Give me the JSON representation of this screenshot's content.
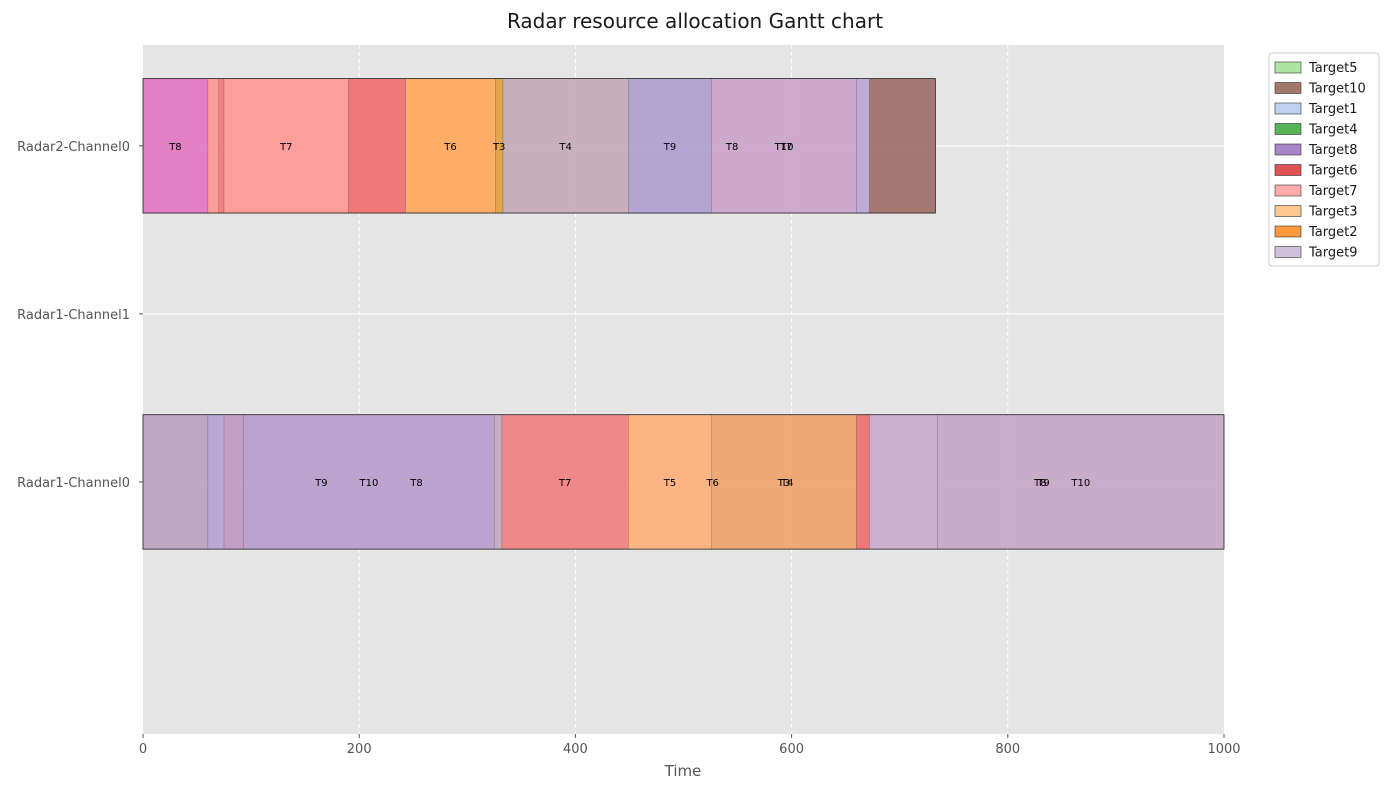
{
  "chart_data": {
    "type": "gantt",
    "title": "Radar resource allocation Gantt chart",
    "xlabel": "Time",
    "ylabel": "",
    "xlim": [
      0,
      1000
    ],
    "xticks": [
      0,
      200,
      400,
      600,
      800,
      1000
    ],
    "grid": true,
    "legend_position": "outside-top-right",
    "rows": [
      "Radar1-Channel0",
      "Radar1-Channel1",
      "Radar2-Channel0"
    ],
    "legend": [
      {
        "name": "Target5",
        "color": "#98df8a"
      },
      {
        "name": "Target10",
        "color": "#8c564b"
      },
      {
        "name": "Target1",
        "color": "#aec7e8"
      },
      {
        "name": "Target4",
        "color": "#2ca02c"
      },
      {
        "name": "Target8",
        "color": "#9467bd"
      },
      {
        "name": "Target6",
        "color": "#d62728"
      },
      {
        "name": "Target7",
        "color": "#ff9896"
      },
      {
        "name": "Target3",
        "color": "#ffbb78"
      },
      {
        "name": "Target2",
        "color": "#ff7f0e"
      },
      {
        "name": "Target9",
        "color": "#c5b0d5"
      }
    ],
    "tasks": [
      {
        "row": "Radar2-Channel0",
        "start": 0,
        "end": 60,
        "color": "#e377c2",
        "label": "T8"
      },
      {
        "row": "Radar2-Channel0",
        "start": 60,
        "end": 70,
        "color": "#ff9896",
        "label": ""
      },
      {
        "row": "Radar2-Channel0",
        "start": 70,
        "end": 75,
        "color": "#f07878",
        "label": ""
      },
      {
        "row": "Radar2-Channel0",
        "start": 75,
        "end": 190,
        "color": "#ff9896",
        "label": "T7"
      },
      {
        "row": "Radar2-Channel0",
        "start": 190,
        "end": 243,
        "color": "#f07070",
        "label": ""
      },
      {
        "row": "Radar2-Channel0",
        "start": 243,
        "end": 326,
        "color": "#ffa85a",
        "label": "T6"
      },
      {
        "row": "Radar2-Channel0",
        "start": 326,
        "end": 333,
        "color": "#e0a040",
        "label": "T3"
      },
      {
        "row": "Radar2-Channel0",
        "start": 333,
        "end": 449,
        "color": "#c4aab8",
        "label": "T4"
      },
      {
        "row": "Radar2-Channel0",
        "start": 449,
        "end": 526,
        "color": "#b09ed0",
        "label": "T9"
      },
      {
        "row": "Radar2-Channel0",
        "start": 526,
        "end": 660,
        "color": "#cca4cc",
        "label": "T10"
      },
      {
        "row": "Radar2-Channel0",
        "start": 660,
        "end": 672,
        "color": "#baa6d4",
        "label": ""
      },
      {
        "row": "Radar2-Channel0",
        "start": 672,
        "end": 733,
        "color": "#9e6e66",
        "label": ""
      },
      {
        "row": "Radar1-Channel0",
        "start": 0,
        "end": 60,
        "color": "#bba2c0",
        "label": ""
      },
      {
        "row": "Radar1-Channel0",
        "start": 60,
        "end": 75,
        "color": "#b6a2d2",
        "label": ""
      },
      {
        "row": "Radar1-Channel0",
        "start": 75,
        "end": 93,
        "color": "#c099c4",
        "label": ""
      },
      {
        "row": "Radar1-Channel0",
        "start": 93,
        "end": 325,
        "color": "#b89ccc",
        "label": "T10"
      },
      {
        "row": "Radar1-Channel0",
        "start": 325,
        "end": 332,
        "color": "#c4aac0",
        "label": ""
      },
      {
        "row": "Radar1-Channel0",
        "start": 332,
        "end": 449,
        "color": "#f08080",
        "label": "T7"
      },
      {
        "row": "Radar1-Channel0",
        "start": 449,
        "end": 526,
        "color": "#ffb07a",
        "label": "T5"
      },
      {
        "row": "Radar1-Channel0",
        "start": 526,
        "end": 660,
        "color": "#efa46c",
        "label": "T3"
      },
      {
        "row": "Radar1-Channel0",
        "start": 660,
        "end": 672,
        "color": "#f07070",
        "label": ""
      },
      {
        "row": "Radar1-Channel0",
        "start": 672,
        "end": 735,
        "color": "#caaacb",
        "label": ""
      },
      {
        "row": "Radar1-Channel0",
        "start": 735,
        "end": 1000,
        "color": "#c8a6c8",
        "label": "T10"
      }
    ],
    "extra_labels": [
      {
        "row": "Radar2-Channel0",
        "x": 545,
        "label": "T8"
      },
      {
        "row": "Radar2-Channel0",
        "x": 595,
        "label": "T7"
      },
      {
        "row": "Radar1-Channel0",
        "x": 165,
        "label": "T9"
      },
      {
        "row": "Radar1-Channel0",
        "x": 253,
        "label": "T8"
      },
      {
        "row": "Radar1-Channel0",
        "x": 527,
        "label": "T6"
      },
      {
        "row": "Radar1-Channel0",
        "x": 596,
        "label": "T4"
      },
      {
        "row": "Radar1-Channel0",
        "x": 830,
        "label": "T8"
      },
      {
        "row": "Radar1-Channel0",
        "x": 833,
        "label": "T9"
      }
    ]
  }
}
